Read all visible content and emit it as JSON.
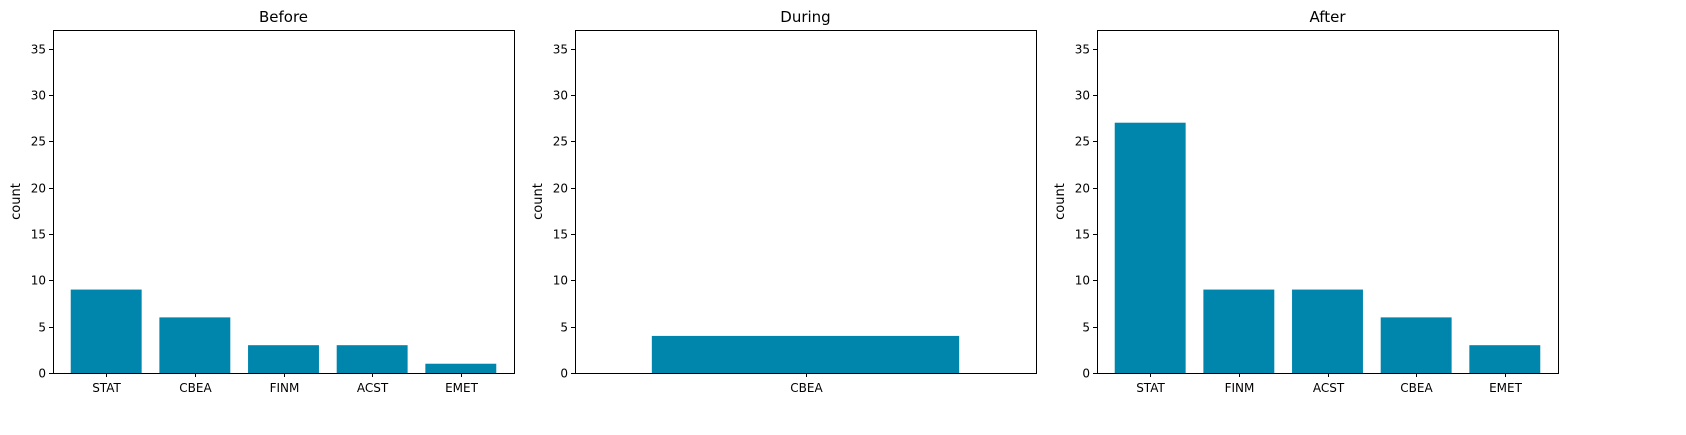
{
  "colors": {
    "bar": "#0086AD"
  },
  "chart_data": [
    {
      "type": "bar",
      "title": "Before",
      "categories": [
        "STAT",
        "CBEA",
        "FINM",
        "ACST",
        "EMET"
      ],
      "values": [
        9,
        6,
        3,
        3,
        1
      ],
      "xlabel": "",
      "ylabel": "count",
      "ylim": [
        0,
        37
      ],
      "yticks": [
        0,
        5,
        10,
        15,
        20,
        25,
        30,
        35
      ],
      "grid": false
    },
    {
      "type": "bar",
      "title": "During",
      "categories": [
        "CBEA"
      ],
      "values": [
        4
      ],
      "xlabel": "",
      "ylabel": "count",
      "ylim": [
        0,
        37
      ],
      "yticks": [
        0,
        5,
        10,
        15,
        20,
        25,
        30,
        35
      ],
      "grid": false
    },
    {
      "type": "bar",
      "title": "After",
      "categories": [
        "STAT",
        "FINM",
        "ACST",
        "CBEA",
        "EMET"
      ],
      "values": [
        27,
        9,
        9,
        6,
        3
      ],
      "xlabel": "",
      "ylabel": "count",
      "ylim": [
        0,
        37
      ],
      "yticks": [
        0,
        5,
        10,
        15,
        20,
        25,
        30,
        35
      ],
      "grid": false
    }
  ]
}
